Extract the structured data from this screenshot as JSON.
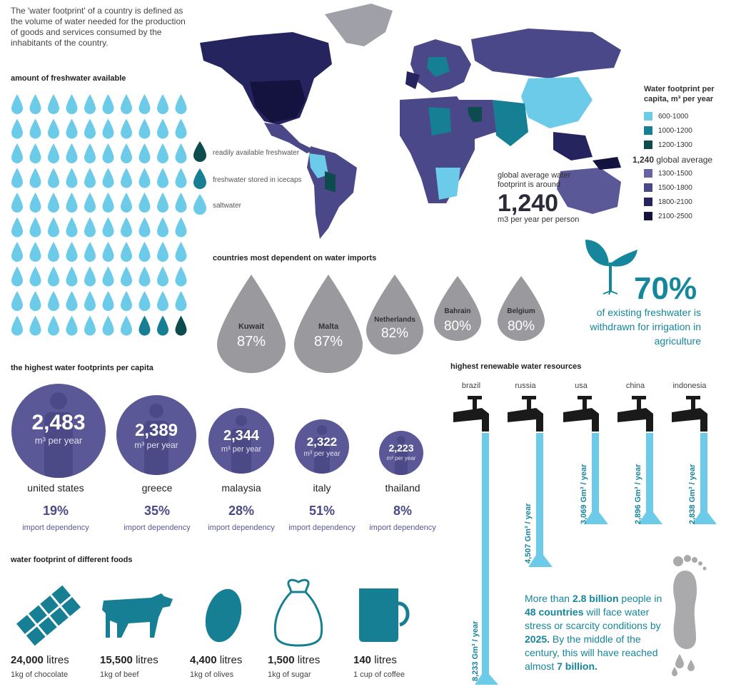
{
  "intro": "The 'water footprint' of a country is defined as the volume of water needed for the production of goods and services consumed by the inhabitants of the country.",
  "freshwater": {
    "title": "amount of freshwater available",
    "legend": [
      "readily available freshwater",
      "freshwater stored in icecaps",
      "saltwater"
    ],
    "colors": {
      "saltwater": "#6ccbe8",
      "icecaps": "#167f93",
      "readily": "#0e4b4f"
    }
  },
  "map_legend": {
    "title": "Water footprint per capita, m³ per year",
    "ranges": [
      {
        "label": "600-1000",
        "color": "#6ccbe8"
      },
      {
        "label": "1000-1200",
        "color": "#167f93"
      },
      {
        "label": "1200-1300",
        "color": "#0e4b4f"
      },
      {
        "label": "1,240",
        "suffix": "global average"
      },
      {
        "label": "1300-1500",
        "color": "#6664a6"
      },
      {
        "label": "1500-1800",
        "color": "#4a4888"
      },
      {
        "label": "1800-2100",
        "color": "#26245e"
      },
      {
        "label": "2100-2500",
        "color": "#14123f"
      }
    ]
  },
  "global_avg": {
    "line1": "global average water footprint is around",
    "value": "1,240",
    "unit": "m3 per year per person"
  },
  "imports": {
    "title": "countries most dependent on water imports",
    "items": [
      {
        "country": "Kuwait",
        "pct": "87%"
      },
      {
        "country": "Malta",
        "pct": "87%"
      },
      {
        "country": "Netherlands",
        "pct": "82%"
      },
      {
        "country": "Bahrain",
        "pct": "80%"
      },
      {
        "country": "Belgium",
        "pct": "80%"
      }
    ]
  },
  "irrigation": {
    "value": "70%",
    "text": "of existing freshwater is withdrawn for irrigation in agriculture"
  },
  "footprints": {
    "title": "the highest water footprints per capita",
    "unit": "m³ per year",
    "dep_label": "import dependency",
    "items": [
      {
        "value": "2,483",
        "country": "united states",
        "pct": "19%"
      },
      {
        "value": "2,389",
        "country": "greece",
        "pct": "35%"
      },
      {
        "value": "2,344",
        "country": "malaysia",
        "pct": "28%"
      },
      {
        "value": "2,322",
        "country": "italy",
        "pct": "51%"
      },
      {
        "value": "2,223",
        "country": "thailand",
        "pct": "8%"
      }
    ]
  },
  "renewable": {
    "title": "highest renewable water resources",
    "items": [
      {
        "country": "brazil",
        "value": "8,233 Gm³ / year"
      },
      {
        "country": "russia",
        "value": "4,507 Gm³ / year"
      },
      {
        "country": "usa",
        "value": "3,069 Gm³ / year"
      },
      {
        "country": "china",
        "value": "2,896 Gm³ / year"
      },
      {
        "country": "indonesia",
        "value": "2,838 Gm³ / year"
      }
    ]
  },
  "foods": {
    "title": "water footprint of different foods",
    "items": [
      {
        "amount": "24,000",
        "unit": "litres",
        "desc": "1kg of chocolate"
      },
      {
        "amount": "15,500",
        "unit": "litres",
        "desc": "1kg of beef"
      },
      {
        "amount": "4,400",
        "unit": "litres",
        "desc": "1kg of olives"
      },
      {
        "amount": "1,500",
        "unit": "litres",
        "desc": "1kg of sugar"
      },
      {
        "amount": "140",
        "unit": "litres",
        "desc": "1 cup of coffee"
      }
    ]
  },
  "scarcity": {
    "p1": "More than ",
    "b1": "2.8 billion",
    "p2": " people in ",
    "b2": "48 countries",
    "p3": " will face water stress or scarcity conditions by ",
    "b3": "2025.",
    "p4": " By the middle of the century, this will have reached almost ",
    "b4": "7 billion."
  }
}
